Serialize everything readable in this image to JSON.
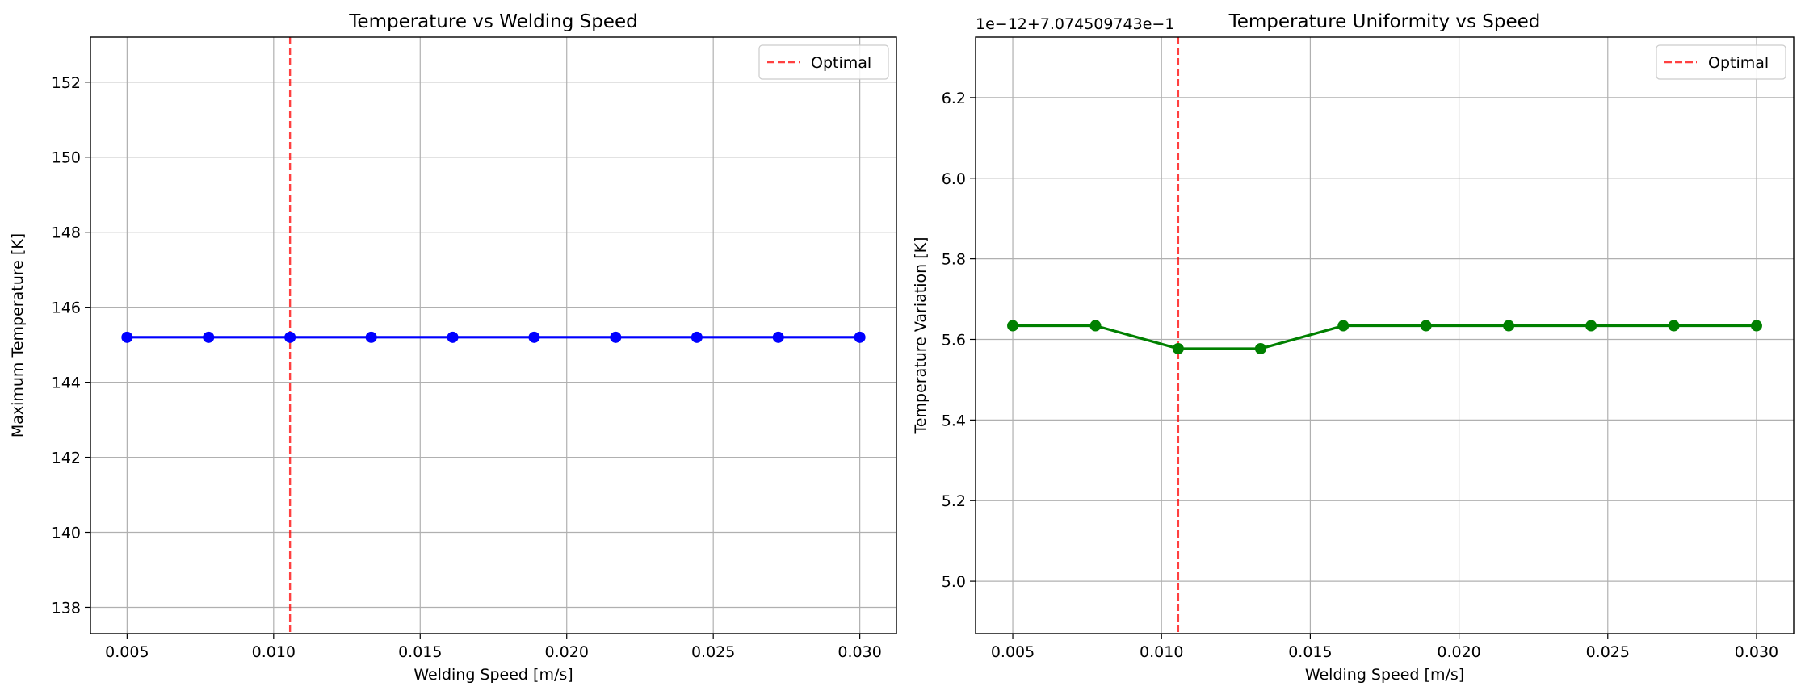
{
  "chart_data": [
    {
      "type": "line",
      "title": "Temperature vs Welding Speed",
      "xlabel": "Welding Speed [m/s]",
      "ylabel": "Maximum Temperature [K]",
      "xlim": [
        0.00375,
        0.03125
      ],
      "ylim": [
        137.3,
        153.2
      ],
      "x_ticks": [
        "0.005",
        "0.010",
        "0.015",
        "0.020",
        "0.025",
        "0.030"
      ],
      "y_ticks": [
        "138",
        "140",
        "142",
        "144",
        "146",
        "148",
        "150",
        "152"
      ],
      "grid": true,
      "legend_position": "top-right",
      "series": [
        {
          "color": "#0000ff",
          "marker": "circle",
          "x": [
            0.005,
            0.00778,
            0.01056,
            0.01333,
            0.01611,
            0.01889,
            0.02167,
            0.02444,
            0.02722,
            0.03
          ],
          "y": [
            145.2,
            145.2,
            145.2,
            145.2,
            145.2,
            145.2,
            145.2,
            145.2,
            145.2,
            145.2
          ]
        }
      ],
      "reference_lines": [
        {
          "name": "Optimal",
          "orientation": "vertical",
          "x": 0.01056,
          "color": "#ff0000",
          "style": "dashed"
        }
      ]
    },
    {
      "type": "line",
      "title": "Temperature Uniformity vs Speed",
      "offset_text": "1e−12+7.074509743e−1",
      "xlabel": "Welding Speed [m/s]",
      "ylabel": "Temperature Variation [K]",
      "xlim": [
        0.00375,
        0.03125
      ],
      "ylim": [
        4.87,
        6.35
      ],
      "x_ticks": [
        "0.005",
        "0.010",
        "0.015",
        "0.020",
        "0.025",
        "0.030"
      ],
      "y_ticks": [
        "5.0",
        "5.2",
        "5.4",
        "5.6",
        "5.8",
        "6.0",
        "6.2"
      ],
      "grid": true,
      "legend_position": "top-right",
      "series": [
        {
          "color": "#008000",
          "marker": "circle",
          "x": [
            0.005,
            0.00778,
            0.01056,
            0.01333,
            0.01611,
            0.01889,
            0.02167,
            0.02444,
            0.02722,
            0.03
          ],
          "y": [
            5.634,
            5.634,
            5.577,
            5.577,
            5.634,
            5.634,
            5.634,
            5.634,
            5.634,
            5.634
          ]
        }
      ],
      "reference_lines": [
        {
          "name": "Optimal",
          "orientation": "vertical",
          "x": 0.01056,
          "color": "#ff0000",
          "style": "dashed"
        }
      ]
    }
  ]
}
